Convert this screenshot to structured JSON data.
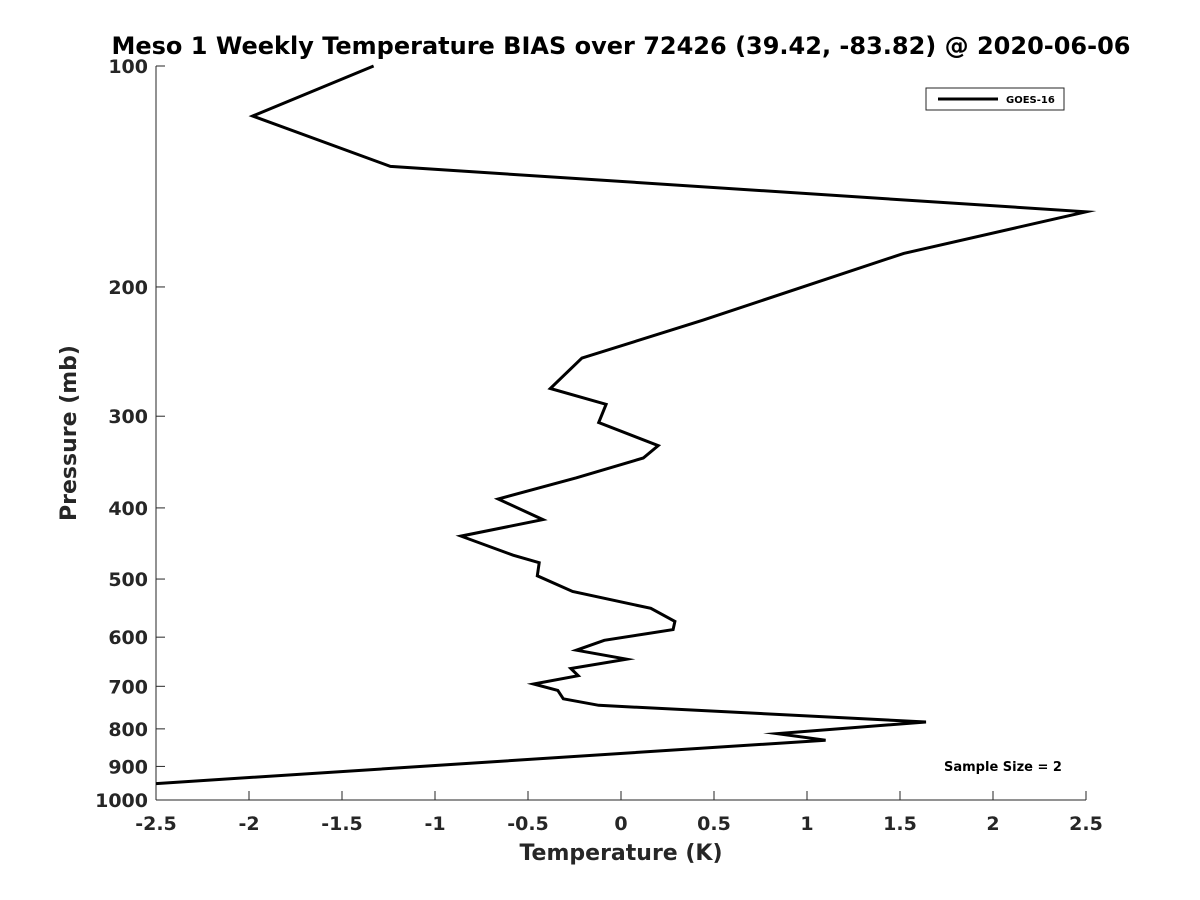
{
  "chart_data": {
    "type": "line",
    "title": "Meso 1 Weekly Temperature BIAS over 72426 (39.42, -83.82) @ 2020-06-06",
    "xlabel": "Temperature (K)",
    "ylabel": "Pressure (mb)",
    "xlim": [
      -2.5,
      2.5
    ],
    "ylim": [
      100,
      1000
    ],
    "y_scale": "log",
    "y_reversed": true,
    "grid": false,
    "legend_position": "top-right",
    "x_ticks": [
      -2.5,
      -2,
      -1.5,
      -1,
      -0.5,
      0,
      0.5,
      1,
      1.5,
      2,
      2.5
    ],
    "x_tick_labels": [
      "-2.5",
      "-2",
      "-1.5",
      "-1",
      "-0.5",
      "0",
      "0.5",
      "1",
      "1.5",
      "2",
      "2.5"
    ],
    "y_ticks": [
      100,
      200,
      300,
      400,
      500,
      600,
      700,
      800,
      900,
      1000
    ],
    "y_tick_labels": [
      "100",
      "200",
      "300",
      "400",
      "500",
      "600",
      "700",
      "800",
      "900",
      "1000"
    ],
    "annotation": "Sample Size = 2",
    "series": [
      {
        "name": "GOES-16",
        "color": "#000000",
        "x": [
          -1.33,
          -1.98,
          -1.24,
          2.5,
          1.52,
          0.44,
          -0.21,
          -0.38,
          -0.08,
          -0.12,
          0.2,
          0.12,
          -0.24,
          -0.66,
          -0.42,
          -0.86,
          -0.58,
          -0.44,
          -0.45,
          -0.26,
          0.16,
          0.29,
          0.28,
          -0.09,
          -0.24,
          0.03,
          -0.27,
          -0.23,
          -0.47,
          -0.34,
          -0.31,
          -0.12,
          1.64,
          0.84,
          1.1,
          -2.5
        ],
        "y": [
          100,
          117,
          137,
          158,
          180,
          222,
          250,
          275,
          289,
          306,
          329,
          342,
          364,
          389,
          415,
          437,
          464,
          475,
          495,
          520,
          548,
          571,
          586,
          606,
          625,
          643,
          662,
          677,
          695,
          709,
          728,
          743,
          783,
          812,
          829,
          950
        ]
      }
    ]
  }
}
